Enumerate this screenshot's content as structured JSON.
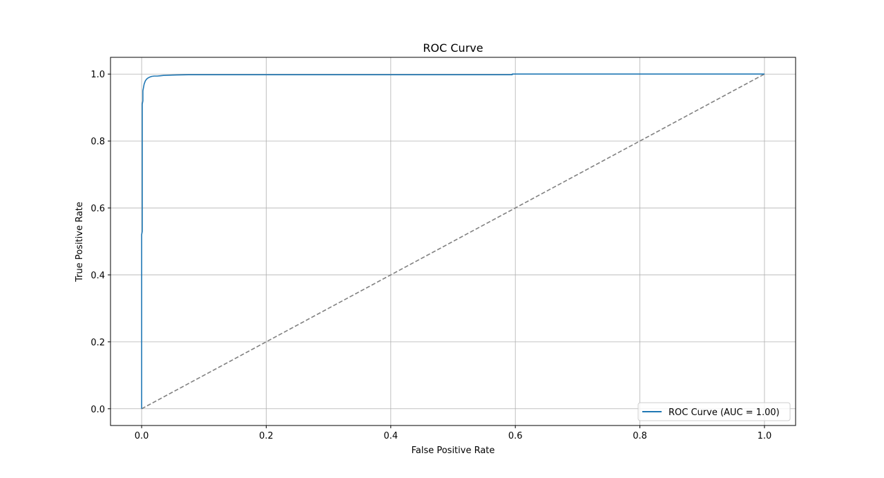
{
  "chart_data": {
    "type": "line",
    "title": "ROC Curve",
    "xlabel": "False Positive Rate",
    "ylabel": "True Positive Rate",
    "xlim": [
      -0.05,
      1.05
    ],
    "ylim": [
      -0.05,
      1.05
    ],
    "x_ticks": [
      "0.0",
      "0.2",
      "0.4",
      "0.6",
      "0.8",
      "1.0"
    ],
    "y_ticks": [
      "0.0",
      "0.2",
      "0.4",
      "0.6",
      "0.8",
      "1.0"
    ],
    "grid": true,
    "legend_position": "bottom-right",
    "series": [
      {
        "name": "ROC Curve (AUC = 1.00)",
        "color": "#1f77b4",
        "style": "solid",
        "x": [
          0.0,
          0.0,
          0.001,
          0.001,
          0.002,
          0.002,
          0.003,
          0.004,
          0.005,
          0.006,
          0.008,
          0.01,
          0.013,
          0.016,
          0.02,
          0.025,
          0.03,
          0.035,
          0.05,
          0.075,
          0.1,
          0.3,
          0.5,
          0.595,
          0.595,
          0.8,
          1.0
        ],
        "y": [
          0.0,
          0.52,
          0.53,
          0.91,
          0.92,
          0.95,
          0.96,
          0.97,
          0.975,
          0.98,
          0.985,
          0.988,
          0.991,
          0.993,
          0.994,
          0.994,
          0.995,
          0.996,
          0.997,
          0.998,
          0.998,
          0.998,
          0.998,
          0.998,
          1.0,
          1.0,
          1.0
        ]
      },
      {
        "color": "#808080",
        "style": "dashed",
        "x": [
          0.0,
          1.0
        ],
        "y": [
          0.0,
          1.0
        ]
      }
    ]
  }
}
